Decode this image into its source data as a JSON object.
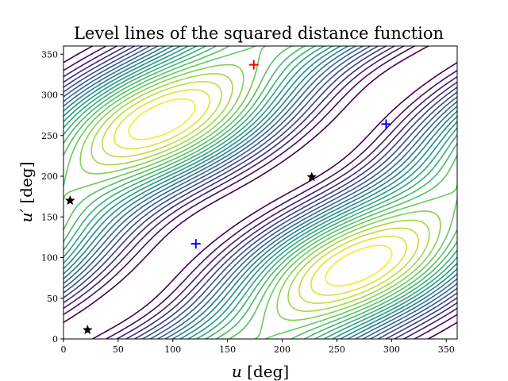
{
  "chart_data": {
    "type": "contour",
    "title": "Level lines of the squared distance function",
    "xlabel": {
      "var": "u",
      "unit": "[deg]"
    },
    "ylabel": {
      "var": "u′",
      "unit": "[deg]"
    },
    "xlim": [
      0,
      360
    ],
    "ylim": [
      0,
      360
    ],
    "xticks": [
      0,
      50,
      100,
      150,
      200,
      250,
      300,
      350
    ],
    "yticks": [
      0,
      50,
      100,
      150,
      200,
      250,
      300,
      350
    ],
    "grid": false,
    "colormap": [
      "#440154",
      "#3b528b",
      "#21918c",
      "#5ec962",
      "#fde725"
    ],
    "markers": [
      {
        "symbol": "plus",
        "color": "#ff0000",
        "x": 174,
        "y": 337
      },
      {
        "symbol": "plus",
        "color": "#0000ff",
        "x": 121,
        "y": 117
      },
      {
        "symbol": "plus",
        "color": "#0000ff",
        "x": 295,
        "y": 264
      },
      {
        "symbol": "star",
        "color": "#000000",
        "x": 6,
        "y": 170
      },
      {
        "symbol": "star",
        "color": "#000000",
        "x": 22,
        "y": 11
      },
      {
        "symbol": "star",
        "color": "#000000",
        "x": 227,
        "y": 199
      }
    ]
  }
}
